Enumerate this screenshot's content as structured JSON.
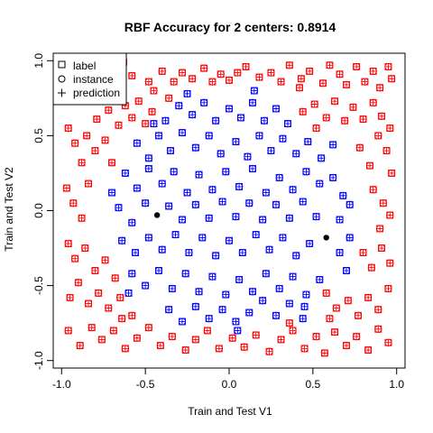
{
  "chart_data": {
    "type": "scatter",
    "title": "RBF Accuracy for 2 centers: 0.8914",
    "xlabel": "Train and Test V1",
    "ylabel": "Train and Test V2",
    "xlim": [
      -1.05,
      1.05
    ],
    "ylim": [
      -1.05,
      1.05
    ],
    "xticks": [
      -1.0,
      -0.5,
      0.0,
      0.5,
      1.0
    ],
    "yticks": [
      -1.0,
      -0.5,
      0.0,
      0.5,
      1.0
    ],
    "xtick_labels": [
      "-1.0",
      "-0.5",
      "0.0",
      "0.5",
      "1.0"
    ],
    "ytick_labels": [
      "-1.0",
      "-0.5",
      "0.0",
      "0.5",
      "1.0"
    ],
    "legend": {
      "position": "top-left",
      "entries": [
        {
          "symbol": "square",
          "label": "label"
        },
        {
          "symbol": "circle",
          "label": "instance"
        },
        {
          "symbol": "plus",
          "label": "prediction"
        }
      ]
    },
    "colors": {
      "outer_class": "#ff0000",
      "inner_class": "#0000ff",
      "centers": "#000000"
    },
    "centers": [
      {
        "x": -0.43,
        "y": -0.03
      },
      {
        "x": 0.58,
        "y": -0.18
      }
    ],
    "series": [
      {
        "color": "#ff0000",
        "points": [
          [
            -0.96,
            0.93
          ],
          [
            -0.93,
            0.78
          ],
          [
            -0.88,
            0.86
          ],
          [
            -0.82,
            0.88
          ],
          [
            -0.75,
            0.92
          ],
          [
            -0.68,
            0.95
          ],
          [
            -0.63,
            0.99
          ],
          [
            -0.58,
            0.9
          ],
          [
            -0.48,
            0.86
          ],
          [
            -0.45,
            0.8
          ],
          [
            -0.4,
            0.93
          ],
          [
            -0.33,
            0.86
          ],
          [
            -0.28,
            0.92
          ],
          [
            -0.22,
            0.88
          ],
          [
            -0.15,
            0.95
          ],
          [
            -0.1,
            0.86
          ],
          [
            -0.05,
            0.91
          ],
          [
            0.0,
            0.87
          ],
          [
            0.05,
            0.92
          ],
          [
            0.1,
            0.96
          ],
          [
            0.18,
            0.89
          ],
          [
            0.25,
            0.92
          ],
          [
            0.31,
            0.86
          ],
          [
            0.36,
            0.97
          ],
          [
            0.43,
            0.88
          ],
          [
            0.48,
            0.93
          ],
          [
            0.56,
            0.85
          ],
          [
            0.6,
            0.97
          ],
          [
            0.66,
            0.91
          ],
          [
            0.7,
            0.84
          ],
          [
            0.76,
            0.96
          ],
          [
            0.81,
            0.86
          ],
          [
            0.86,
            0.93
          ],
          [
            0.9,
            0.82
          ],
          [
            0.95,
            0.96
          ],
          [
            0.97,
            0.88
          ],
          [
            -0.84,
            0.73
          ],
          [
            -0.79,
            0.61
          ],
          [
            -0.72,
            0.67
          ],
          [
            -0.66,
            0.57
          ],
          [
            -0.62,
            0.7
          ],
          [
            -0.54,
            0.73
          ],
          [
            -0.5,
            0.58
          ],
          [
            -0.46,
            0.66
          ],
          [
            0.44,
            0.66
          ],
          [
            0.51,
            0.71
          ],
          [
            0.58,
            0.62
          ],
          [
            0.63,
            0.73
          ],
          [
            0.69,
            0.6
          ],
          [
            0.74,
            0.69
          ],
          [
            0.8,
            0.61
          ],
          [
            0.86,
            0.72
          ],
          [
            0.91,
            0.63
          ],
          [
            0.96,
            0.55
          ],
          [
            -0.96,
            0.55
          ],
          [
            -0.92,
            0.45
          ],
          [
            -0.85,
            0.5
          ],
          [
            -0.8,
            0.4
          ],
          [
            -0.74,
            0.47
          ],
          [
            -0.7,
            0.32
          ],
          [
            -0.88,
            0.32
          ],
          [
            0.78,
            0.42
          ],
          [
            0.84,
            0.3
          ],
          [
            0.89,
            0.5
          ],
          [
            0.94,
            0.4
          ],
          [
            0.97,
            0.25
          ],
          [
            -0.97,
            0.15
          ],
          [
            -0.93,
            0.05
          ],
          [
            -0.88,
            -0.05
          ],
          [
            -0.84,
            0.18
          ],
          [
            0.86,
            0.14
          ],
          [
            0.92,
            0.05
          ],
          [
            0.96,
            -0.03
          ],
          [
            0.9,
            -0.12
          ],
          [
            -0.96,
            -0.22
          ],
          [
            -0.92,
            -0.32
          ],
          [
            -0.86,
            -0.25
          ],
          [
            -0.8,
            -0.4
          ],
          [
            -0.74,
            -0.33
          ],
          [
            -0.68,
            -0.45
          ],
          [
            0.8,
            -0.28
          ],
          [
            0.85,
            -0.38
          ],
          [
            0.91,
            -0.25
          ],
          [
            0.96,
            -0.35
          ],
          [
            -0.95,
            -0.58
          ],
          [
            -0.9,
            -0.48
          ],
          [
            -0.84,
            -0.62
          ],
          [
            -0.78,
            -0.55
          ],
          [
            -0.72,
            -0.65
          ],
          [
            -0.65,
            -0.58
          ],
          [
            -0.58,
            -0.7
          ],
          [
            0.58,
            -0.55
          ],
          [
            0.64,
            -0.65
          ],
          [
            0.71,
            -0.6
          ],
          [
            0.77,
            -0.7
          ],
          [
            0.83,
            -0.58
          ],
          [
            0.89,
            -0.66
          ],
          [
            0.95,
            -0.52
          ],
          [
            -0.96,
            -0.8
          ],
          [
            -0.89,
            -0.9
          ],
          [
            -0.82,
            -0.78
          ],
          [
            -0.76,
            -0.86
          ],
          [
            -0.69,
            -0.8
          ],
          [
            -0.62,
            -0.92
          ],
          [
            -0.55,
            -0.85
          ],
          [
            -0.48,
            -0.78
          ],
          [
            -0.41,
            -0.9
          ],
          [
            -0.34,
            -0.84
          ],
          [
            -0.26,
            -0.93
          ],
          [
            -0.2,
            -0.86
          ],
          [
            -0.13,
            -0.8
          ],
          [
            -0.06,
            -0.92
          ],
          [
            0.02,
            -0.85
          ],
          [
            0.09,
            -0.91
          ],
          [
            0.16,
            -0.83
          ],
          [
            0.24,
            -0.94
          ],
          [
            0.31,
            -0.86
          ],
          [
            0.38,
            -0.8
          ],
          [
            0.45,
            -0.92
          ],
          [
            0.52,
            -0.84
          ],
          [
            0.57,
            -0.95
          ],
          [
            0.63,
            -0.81
          ],
          [
            0.7,
            -0.9
          ],
          [
            0.76,
            -0.84
          ],
          [
            0.83,
            -0.93
          ],
          [
            0.89,
            -0.79
          ],
          [
            0.95,
            -0.88
          ],
          [
            -0.58,
            0.62
          ],
          [
            0.52,
            0.55
          ],
          [
            -0.64,
            -0.72
          ],
          [
            0.6,
            -0.72
          ],
          [
            0.42,
            0.82
          ],
          [
            -0.36,
            0.75
          ],
          [
            0.36,
            -0.75
          ]
        ]
      },
      {
        "color": "#0000ff",
        "points": [
          [
            -0.38,
            0.6
          ],
          [
            -0.3,
            0.7
          ],
          [
            -0.22,
            0.64
          ],
          [
            -0.15,
            0.72
          ],
          [
            -0.08,
            0.6
          ],
          [
            0.0,
            0.68
          ],
          [
            0.07,
            0.62
          ],
          [
            0.14,
            0.72
          ],
          [
            0.21,
            0.6
          ],
          [
            0.28,
            0.68
          ],
          [
            0.35,
            0.58
          ],
          [
            -0.55,
            0.45
          ],
          [
            -0.48,
            0.35
          ],
          [
            -0.42,
            0.5
          ],
          [
            -0.35,
            0.4
          ],
          [
            -0.28,
            0.52
          ],
          [
            -0.2,
            0.42
          ],
          [
            -0.12,
            0.5
          ],
          [
            -0.05,
            0.38
          ],
          [
            0.04,
            0.46
          ],
          [
            0.11,
            0.36
          ],
          [
            0.18,
            0.5
          ],
          [
            0.25,
            0.4
          ],
          [
            0.32,
            0.48
          ],
          [
            0.4,
            0.38
          ],
          [
            0.47,
            0.46
          ],
          [
            0.55,
            0.35
          ],
          [
            0.62,
            0.44
          ],
          [
            -0.62,
            0.25
          ],
          [
            -0.55,
            0.15
          ],
          [
            -0.48,
            0.28
          ],
          [
            -0.4,
            0.18
          ],
          [
            -0.33,
            0.26
          ],
          [
            -0.25,
            0.12
          ],
          [
            -0.18,
            0.24
          ],
          [
            -0.1,
            0.14
          ],
          [
            -0.02,
            0.26
          ],
          [
            0.06,
            0.16
          ],
          [
            0.14,
            0.28
          ],
          [
            0.22,
            0.12
          ],
          [
            0.3,
            0.22
          ],
          [
            0.38,
            0.14
          ],
          [
            0.46,
            0.26
          ],
          [
            0.54,
            0.18
          ],
          [
            0.62,
            0.22
          ],
          [
            0.68,
            0.1
          ],
          [
            -0.66,
            0.02
          ],
          [
            -0.58,
            -0.08
          ],
          [
            -0.5,
            0.05
          ],
          [
            -0.36,
            0.03
          ],
          [
            -0.28,
            -0.06
          ],
          [
            -0.2,
            0.04
          ],
          [
            -0.12,
            -0.05
          ],
          [
            -0.04,
            0.06
          ],
          [
            0.04,
            -0.04
          ],
          [
            0.12,
            0.05
          ],
          [
            0.2,
            -0.06
          ],
          [
            0.28,
            0.04
          ],
          [
            0.36,
            -0.05
          ],
          [
            0.44,
            0.06
          ],
          [
            0.52,
            -0.04
          ],
          [
            0.66,
            -0.06
          ],
          [
            0.72,
            0.04
          ],
          [
            -0.64,
            -0.2
          ],
          [
            -0.56,
            -0.28
          ],
          [
            -0.48,
            -0.18
          ],
          [
            -0.4,
            -0.26
          ],
          [
            -0.32,
            -0.16
          ],
          [
            -0.24,
            -0.28
          ],
          [
            -0.16,
            -0.18
          ],
          [
            -0.08,
            -0.3
          ],
          [
            0.0,
            -0.2
          ],
          [
            0.08,
            -0.28
          ],
          [
            0.16,
            -0.16
          ],
          [
            0.24,
            -0.26
          ],
          [
            0.32,
            -0.18
          ],
          [
            0.4,
            -0.3
          ],
          [
            0.48,
            -0.22
          ],
          [
            0.66,
            -0.28
          ],
          [
            0.72,
            -0.18
          ],
          [
            -0.58,
            -0.42
          ],
          [
            -0.5,
            -0.5
          ],
          [
            -0.42,
            -0.4
          ],
          [
            -0.34,
            -0.52
          ],
          [
            -0.26,
            -0.42
          ],
          [
            -0.18,
            -0.54
          ],
          [
            -0.1,
            -0.44
          ],
          [
            -0.02,
            -0.56
          ],
          [
            0.06,
            -0.46
          ],
          [
            0.14,
            -0.54
          ],
          [
            0.22,
            -0.42
          ],
          [
            0.3,
            -0.52
          ],
          [
            0.38,
            -0.44
          ],
          [
            0.46,
            -0.56
          ],
          [
            0.54,
            -0.46
          ],
          [
            -0.36,
            -0.66
          ],
          [
            -0.28,
            -0.74
          ],
          [
            -0.2,
            -0.64
          ],
          [
            -0.12,
            -0.72
          ],
          [
            -0.04,
            -0.66
          ],
          [
            0.04,
            -0.74
          ],
          [
            0.12,
            -0.68
          ],
          [
            0.2,
            -0.6
          ],
          [
            0.28,
            -0.7
          ],
          [
            0.36,
            -0.62
          ],
          [
            0.44,
            -0.72
          ],
          [
            -0.45,
            0.58
          ],
          [
            0.45,
            -0.64
          ],
          [
            -0.7,
            0.12
          ],
          [
            0.7,
            -0.4
          ],
          [
            -0.25,
            0.78
          ],
          [
            0.15,
            0.8
          ],
          [
            -0.6,
            -0.55
          ],
          [
            0.05,
            -0.8
          ]
        ]
      }
    ]
  }
}
